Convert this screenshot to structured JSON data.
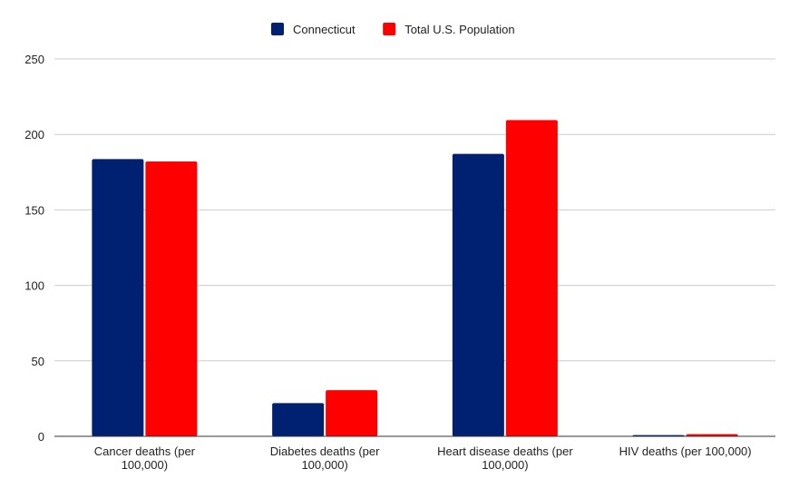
{
  "chart_data": {
    "type": "bar",
    "title": "",
    "xlabel": "",
    "ylabel": "",
    "categories": [
      [
        "Cancer deaths (per",
        "100,000)"
      ],
      [
        "Diabetes deaths (per",
        "100,000)"
      ],
      [
        "Heart disease deaths (per",
        "100,000)"
      ],
      [
        "HIV deaths (per 100,000)"
      ]
    ],
    "series": [
      {
        "name": "Connecticut",
        "color": "#002171",
        "values": [
          183.7,
          22.0,
          187.1,
          0.8
        ]
      },
      {
        "name": "Total U.S. Population",
        "color": "#ff0000",
        "values": [
          182.1,
          30.6,
          209.5,
          1.4
        ]
      }
    ],
    "ylim": [
      0,
      250
    ],
    "yticks": [
      0,
      50,
      100,
      150,
      200,
      250
    ],
    "grid": true,
    "legend": "top"
  }
}
